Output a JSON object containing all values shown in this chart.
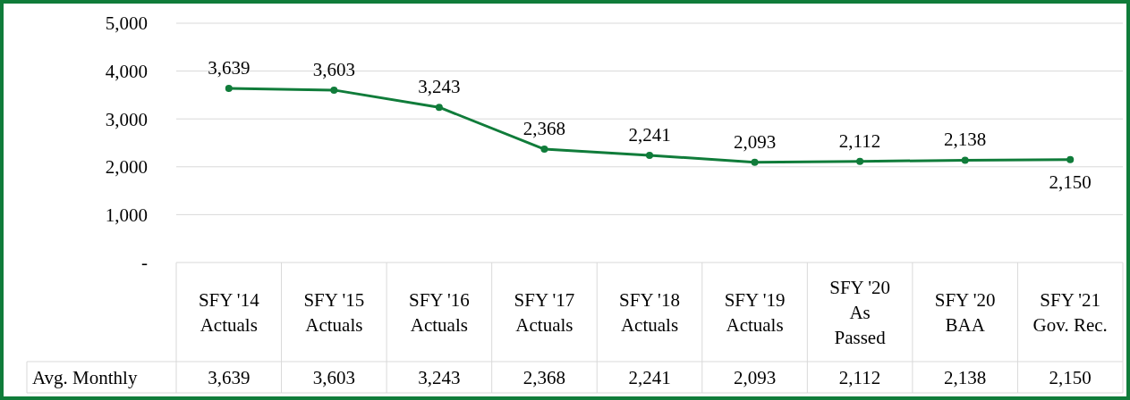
{
  "chart_data": {
    "type": "line",
    "categories": [
      "SFY '14\nActuals",
      "SFY '15\nActuals",
      "SFY '16\nActuals",
      "SFY '17\nActuals",
      "SFY '18\nActuals",
      "SFY '19\nActuals",
      "SFY '20\nAs\nPassed",
      "SFY '20\nBAA",
      "SFY '21\nGov. Rec."
    ],
    "series": [
      {
        "name": "Avg. Monthly",
        "color": "#107c3a",
        "values": [
          3639,
          3603,
          3243,
          2368,
          2241,
          2093,
          2112,
          2138,
          2150
        ],
        "value_labels": [
          "3,639",
          "3,603",
          "3,243",
          "2,368",
          "2,241",
          "2,093",
          "2,112",
          "2,138",
          "2,150"
        ]
      }
    ],
    "ylim": [
      0,
      5000
    ],
    "yticks": [
      {
        "value": 0,
        "label": "-"
      },
      {
        "value": 1000,
        "label": "1,000"
      },
      {
        "value": 2000,
        "label": "2,000"
      },
      {
        "value": 3000,
        "label": "3,000"
      },
      {
        "value": 4000,
        "label": "4,000"
      },
      {
        "value": 5000,
        "label": "5,000"
      }
    ],
    "grid": "y",
    "marker": "circle",
    "line_style": "solid",
    "legend": "bottom left"
  }
}
